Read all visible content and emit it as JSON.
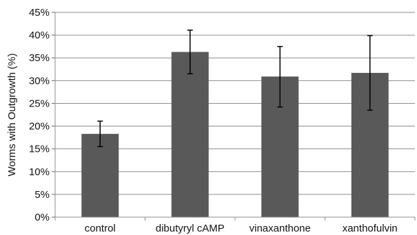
{
  "chart_data": {
    "type": "bar",
    "categories": [
      "control",
      "dibutyryl cAMP",
      "vinaxanthone",
      "xanthofulvin"
    ],
    "values": [
      18.3,
      36.3,
      30.9,
      31.7
    ],
    "error_low": [
      15.5,
      31.5,
      24.2,
      23.5
    ],
    "error_high": [
      21.1,
      41.1,
      37.5,
      39.9
    ],
    "ylabel": "Worms with Outgrowth (%)",
    "ylim": [
      0,
      45
    ],
    "ytick_values": [
      0,
      5,
      10,
      15,
      20,
      25,
      30,
      35,
      40,
      45
    ],
    "ytick_labels": [
      "0%",
      "5%",
      "10%",
      "15%",
      "20%",
      "25%",
      "30%",
      "35%",
      "40%",
      "45%"
    ],
    "grid": true,
    "bar_color": "#595959",
    "grid_color": "#8c8c8c",
    "error_bar_color": "#000000"
  }
}
